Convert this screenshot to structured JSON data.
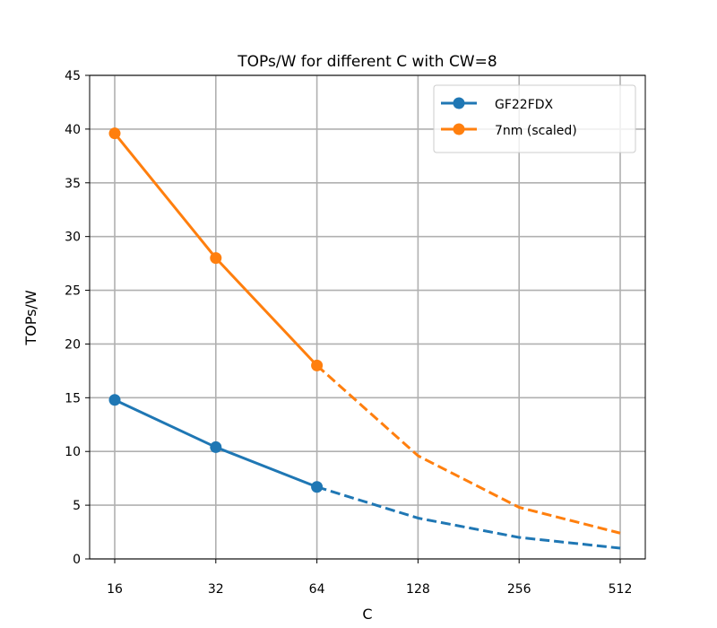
{
  "chart_data": {
    "type": "line",
    "title": "TOPs/W for different C with CW=8",
    "xlabel": "C",
    "ylabel": "TOPs/W",
    "x_scale": "log2",
    "x_ticks": [
      "16",
      "32",
      "64",
      "128",
      "256",
      "512"
    ],
    "ylim": [
      0,
      45
    ],
    "y_ticks": [
      "0",
      "5",
      "10",
      "15",
      "20",
      "25",
      "30",
      "35",
      "40",
      "45"
    ],
    "grid": true,
    "legend_position": "top-right",
    "series": [
      {
        "name": "GF22FDX",
        "color": "#1f77b4",
        "measured": {
          "x": [
            16,
            32,
            64
          ],
          "y": [
            14.8,
            10.4,
            6.7
          ]
        },
        "projected": {
          "x": [
            64,
            128,
            256,
            512
          ],
          "y": [
            6.7,
            3.8,
            2.0,
            1.0
          ]
        }
      },
      {
        "name": "7nm (scaled)",
        "color": "#ff7f0e",
        "measured": {
          "x": [
            16,
            32,
            64
          ],
          "y": [
            39.6,
            28.0,
            18.0
          ]
        },
        "projected": {
          "x": [
            64,
            128,
            256,
            512
          ],
          "y": [
            18.0,
            9.6,
            4.8,
            2.4
          ]
        }
      }
    ]
  }
}
